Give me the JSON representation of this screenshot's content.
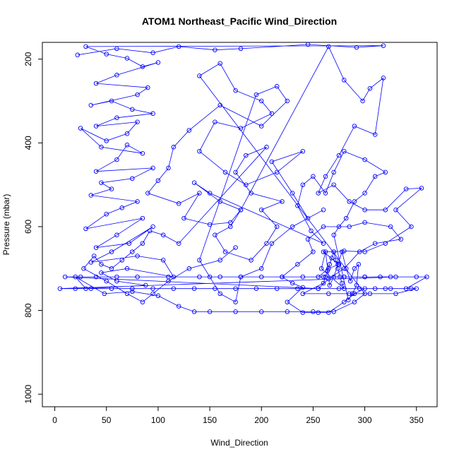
{
  "chart_data": {
    "type": "scatter",
    "title": "ATOM1 Northeast_Pacific Wind_Direction",
    "xlabel": "Wind_Direction",
    "ylabel": "Pressure (mbar)",
    "xlim": [
      -12,
      370
    ],
    "ylim": [
      1030,
      160
    ],
    "y_reversed": true,
    "grid": false,
    "legend": "none",
    "x_ticks": [
      "0",
      "50",
      "100",
      "150",
      "200",
      "250",
      "300",
      "350"
    ],
    "y_ticks": [
      "200",
      "400",
      "600",
      "800",
      "1000"
    ],
    "series": [
      {
        "color": "#0000ff",
        "marker": "open-circle",
        "connected": true,
        "points": [
          [
            22,
            190
          ],
          [
            60,
            175
          ],
          [
            95,
            185
          ],
          [
            120,
            170
          ],
          [
            155,
            178
          ],
          [
            180,
            175
          ],
          [
            245,
            165
          ],
          [
            292,
            172
          ],
          [
            318,
            168
          ],
          [
            30,
            170
          ],
          [
            50,
            188
          ],
          [
            70,
            198
          ],
          [
            85,
            218
          ],
          [
            100,
            208
          ],
          [
            60,
            238
          ],
          [
            40,
            258
          ],
          [
            90,
            268
          ],
          [
            80,
            285
          ],
          [
            35,
            310
          ],
          [
            55,
            300
          ],
          [
            75,
            320
          ],
          [
            95,
            330
          ],
          [
            60,
            340
          ],
          [
            40,
            360
          ],
          [
            80,
            350
          ],
          [
            70,
            378
          ],
          [
            50,
            395
          ],
          [
            25,
            365
          ],
          [
            45,
            410
          ],
          [
            85,
            425
          ],
          [
            70,
            405
          ],
          [
            60,
            440
          ],
          [
            40,
            468
          ],
          [
            95,
            460
          ],
          [
            75,
            485
          ],
          [
            45,
            495
          ],
          [
            55,
            510
          ],
          [
            35,
            525
          ],
          [
            80,
            540
          ],
          [
            65,
            555
          ],
          [
            50,
            570
          ],
          [
            30,
            605
          ],
          [
            85,
            580
          ],
          [
            60,
            620
          ],
          [
            40,
            650
          ],
          [
            72,
            640
          ],
          [
            95,
            600
          ],
          [
            55,
            660
          ],
          [
            35,
            685
          ],
          [
            80,
            670
          ],
          [
            105,
            680
          ],
          [
            115,
            720
          ],
          [
            70,
            700
          ],
          [
            45,
            710
          ],
          [
            60,
            730
          ],
          [
            88,
            740
          ],
          [
            30,
            748
          ],
          [
            20,
            720
          ],
          [
            48,
            760
          ],
          [
            75,
            755
          ],
          [
            100,
            765
          ],
          [
            120,
            790
          ],
          [
            135,
            803
          ],
          [
            150,
            803
          ],
          [
            175,
            803
          ],
          [
            200,
            803
          ],
          [
            225,
            803
          ],
          [
            250,
            803
          ],
          [
            270,
            803
          ],
          [
            290,
            780
          ],
          [
            300,
            760
          ],
          [
            140,
            240
          ],
          [
            160,
            210
          ],
          [
            175,
            275
          ],
          [
            200,
            300
          ],
          [
            210,
            330
          ],
          [
            180,
            365
          ],
          [
            155,
            350
          ],
          [
            140,
            420
          ],
          [
            165,
            470
          ],
          [
            185,
            500
          ],
          [
            215,
            470
          ],
          [
            240,
            420
          ],
          [
            210,
            445
          ],
          [
            230,
            520
          ],
          [
            245,
            580
          ],
          [
            260,
            560
          ],
          [
            230,
            600
          ],
          [
            210,
            640
          ],
          [
            200,
            700
          ],
          [
            180,
            720
          ],
          [
            175,
            780
          ],
          [
            160,
            760
          ],
          [
            150,
            720
          ],
          [
            140,
            680
          ],
          [
            195,
            285
          ],
          [
            215,
            265
          ],
          [
            225,
            300
          ],
          [
            200,
            360
          ],
          [
            160,
            310
          ],
          [
            130,
            370
          ],
          [
            115,
            410
          ],
          [
            110,
            460
          ],
          [
            100,
            490
          ],
          [
            90,
            520
          ],
          [
            120,
            545
          ],
          [
            140,
            520
          ],
          [
            125,
            580
          ],
          [
            150,
            595
          ],
          [
            170,
            590
          ],
          [
            180,
            560
          ],
          [
            265,
            170
          ],
          [
            280,
            250
          ],
          [
            298,
            300
          ],
          [
            305,
            270
          ],
          [
            318,
            245
          ],
          [
            310,
            380
          ],
          [
            290,
            360
          ],
          [
            275,
            430
          ],
          [
            262,
            480
          ],
          [
            255,
            520
          ],
          [
            270,
            500
          ],
          [
            285,
            540
          ],
          [
            300,
            560
          ],
          [
            320,
            560
          ],
          [
            340,
            510
          ],
          [
            355,
            508
          ],
          [
            330,
            560
          ],
          [
            345,
            600
          ],
          [
            320,
            640
          ],
          [
            300,
            660
          ],
          [
            280,
            658
          ],
          [
            270,
            660
          ],
          [
            260,
            660
          ],
          [
            275,
            690
          ],
          [
            265,
            700
          ],
          [
            255,
            720
          ],
          [
            280,
            720
          ],
          [
            300,
            720
          ],
          [
            325,
            720
          ],
          [
            350,
            720
          ],
          [
            360,
            720
          ],
          [
            340,
            748
          ],
          [
            320,
            748
          ],
          [
            300,
            748
          ],
          [
            290,
            760
          ],
          [
            280,
            780
          ],
          [
            265,
            805
          ],
          [
            255,
            805
          ],
          [
            240,
            805
          ],
          [
            225,
            780
          ],
          [
            240,
            745
          ],
          [
            230,
            735
          ],
          [
            220,
            720
          ],
          [
            235,
            690
          ],
          [
            250,
            660
          ],
          [
            245,
            630
          ],
          [
            260,
            600
          ],
          [
            285,
            600
          ],
          [
            300,
            590
          ],
          [
            325,
            600
          ],
          [
            335,
            630
          ],
          [
            310,
            640
          ],
          [
            295,
            660
          ],
          [
            280,
            700
          ],
          [
            265,
            725
          ],
          [
            255,
            748
          ],
          [
            10,
            720
          ],
          [
            25,
            720
          ],
          [
            40,
            720
          ],
          [
            60,
            720
          ],
          [
            80,
            720
          ],
          [
            110,
            720
          ],
          [
            140,
            720
          ],
          [
            160,
            720
          ],
          [
            180,
            720
          ],
          [
            200,
            720
          ],
          [
            220,
            720
          ],
          [
            240,
            720
          ],
          [
            260,
            720
          ],
          [
            280,
            720
          ],
          [
            300,
            720
          ],
          [
            315,
            720
          ],
          [
            330,
            720
          ],
          [
            5,
            748
          ],
          [
            20,
            748
          ],
          [
            35,
            748
          ],
          [
            55,
            748
          ],
          [
            75,
            748
          ],
          [
            95,
            748
          ],
          [
            115,
            748
          ],
          [
            135,
            748
          ],
          [
            155,
            748
          ],
          [
            175,
            748
          ],
          [
            195,
            748
          ],
          [
            215,
            748
          ],
          [
            235,
            748
          ],
          [
            255,
            748
          ],
          [
            275,
            748
          ],
          [
            295,
            748
          ],
          [
            310,
            748
          ],
          [
            325,
            748
          ],
          [
            345,
            748
          ],
          [
            350,
            748
          ],
          [
            330,
            760
          ],
          [
            305,
            760
          ],
          [
            285,
            760
          ],
          [
            265,
            760
          ],
          [
            240,
            760
          ],
          [
            260,
            735
          ],
          [
            262,
            720
          ],
          [
            264,
            705
          ],
          [
            266,
            690
          ],
          [
            268,
            675
          ],
          [
            270,
            660
          ],
          [
            272,
            680
          ],
          [
            274,
            700
          ],
          [
            276,
            720
          ],
          [
            278,
            735
          ],
          [
            280,
            748
          ],
          [
            258,
            700
          ],
          [
            262,
            660
          ],
          [
            266,
            740
          ],
          [
            270,
            720
          ],
          [
            274,
            690
          ],
          [
            278,
            660
          ],
          [
            282,
            700
          ],
          [
            286,
            730
          ],
          [
            290,
            700
          ],
          [
            294,
            690
          ],
          [
            292,
            740
          ],
          [
            288,
            760
          ],
          [
            284,
            775
          ],
          [
            270,
            620
          ],
          [
            275,
            600
          ],
          [
            282,
            580
          ],
          [
            290,
            540
          ],
          [
            300,
            520
          ],
          [
            310,
            480
          ],
          [
            320,
            470
          ],
          [
            300,
            440
          ],
          [
            280,
            420
          ],
          [
            270,
            470
          ],
          [
            262,
            520
          ],
          [
            250,
            480
          ],
          [
            240,
            500
          ],
          [
            235,
            550
          ],
          [
            248,
            610
          ],
          [
            260,
            640
          ],
          [
            150,
            520
          ],
          [
            135,
            495
          ],
          [
            160,
            540
          ],
          [
            180,
            560
          ],
          [
            170,
            600
          ],
          [
            155,
            620
          ],
          [
            165,
            660
          ],
          [
            190,
            680
          ],
          [
            205,
            640
          ],
          [
            215,
            600
          ],
          [
            200,
            560
          ],
          [
            220,
            540
          ],
          [
            190,
            520
          ],
          [
            175,
            470
          ],
          [
            185,
            430
          ],
          [
            205,
            410
          ],
          [
            120,
            640
          ],
          [
            105,
            620
          ],
          [
            92,
            610
          ],
          [
            85,
            640
          ],
          [
            75,
            660
          ],
          [
            65,
            680
          ],
          [
            55,
            700
          ],
          [
            45,
            690
          ],
          [
            38,
            670
          ],
          [
            28,
            700
          ],
          [
            50,
            730
          ],
          [
            70,
            760
          ],
          [
            85,
            780
          ],
          [
            95,
            760
          ],
          [
            110,
            730
          ],
          [
            130,
            700
          ],
          [
            160,
            680
          ],
          [
            175,
            650
          ]
        ]
      }
    ]
  }
}
